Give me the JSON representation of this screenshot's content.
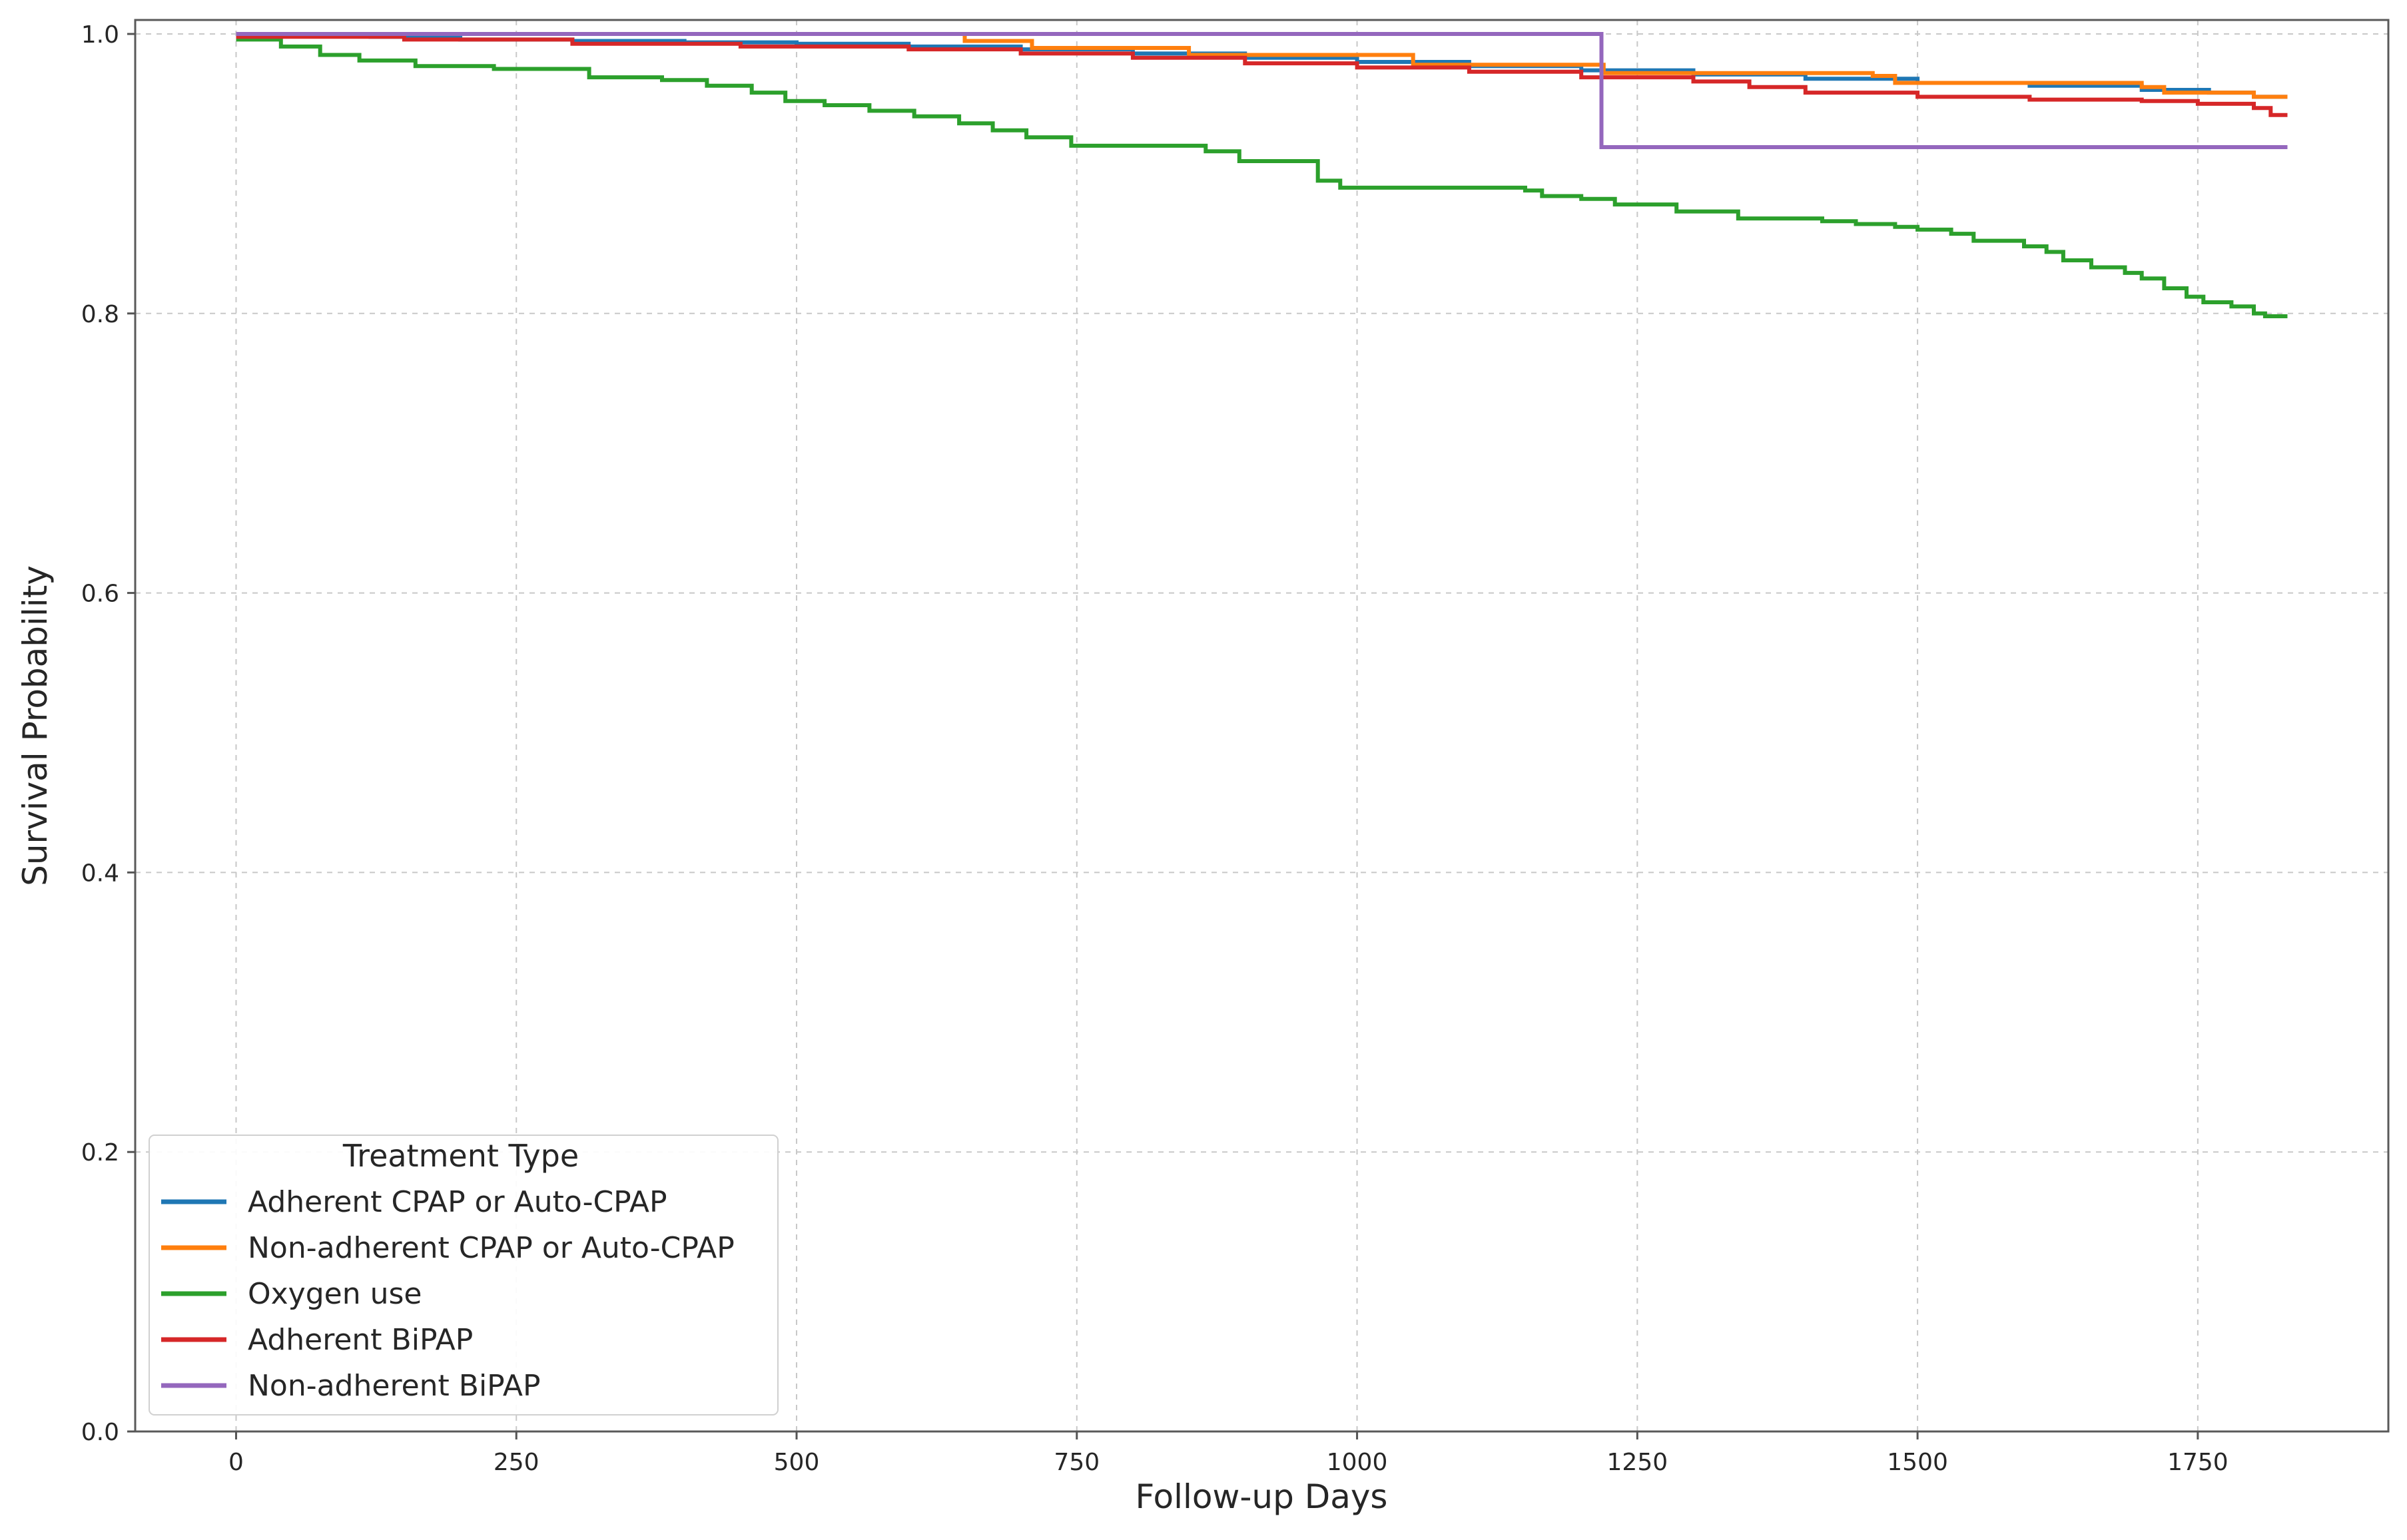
{
  "chart_data": {
    "type": "line",
    "title": "",
    "xlabel": "Follow-up Days",
    "ylabel": "Survival Probability",
    "xlim": [
      -90,
      1920
    ],
    "ylim": [
      0.0,
      1.01
    ],
    "xticks": [
      0,
      250,
      500,
      750,
      1000,
      1250,
      1500,
      1750
    ],
    "xtick_labels": [
      "0",
      "250",
      "500",
      "750",
      "1000",
      "1250",
      "1500",
      "1750"
    ],
    "yticks": [
      0.0,
      0.2,
      0.4,
      0.6,
      0.8,
      1.0
    ],
    "ytick_labels": [
      "0.0",
      "0.2",
      "0.4",
      "0.6",
      "0.8",
      "1.0"
    ],
    "grid": true,
    "legend": {
      "title": "Treatment Type",
      "placement": "lower-left"
    },
    "series": [
      {
        "name": "Adherent CPAP or Auto-CPAP",
        "color": "#1f77b4",
        "step": "post",
        "x": [
          0,
          50,
          120,
          200,
          300,
          400,
          500,
          600,
          700,
          800,
          900,
          1000,
          1100,
          1200,
          1300,
          1400,
          1500,
          1600,
          1700,
          1760,
          1800,
          1830
        ],
        "y": [
          1.0,
          0.999,
          0.998,
          0.996,
          0.995,
          0.994,
          0.993,
          0.991,
          0.989,
          0.986,
          0.983,
          0.98,
          0.977,
          0.974,
          0.971,
          0.968,
          0.965,
          0.963,
          0.96,
          0.958,
          0.955,
          0.955
        ]
      },
      {
        "name": "Non-adherent CPAP or Auto-CPAP",
        "color": "#ff7f0e",
        "step": "post",
        "x": [
          0,
          300,
          650,
          710,
          850,
          1050,
          1220,
          1460,
          1480,
          1700,
          1720,
          1800,
          1830
        ],
        "y": [
          1.0,
          1.0,
          0.995,
          0.99,
          0.985,
          0.978,
          0.972,
          0.97,
          0.965,
          0.962,
          0.958,
          0.955,
          0.955
        ]
      },
      {
        "name": "Oxygen use",
        "color": "#2ca02c",
        "step": "post",
        "x": [
          0,
          40,
          75,
          110,
          160,
          230,
          315,
          380,
          420,
          460,
          490,
          525,
          565,
          605,
          645,
          675,
          705,
          745,
          865,
          895,
          965,
          985,
          1150,
          1165,
          1200,
          1230,
          1285,
          1340,
          1415,
          1445,
          1480,
          1500,
          1530,
          1550,
          1595,
          1615,
          1630,
          1655,
          1685,
          1700,
          1720,
          1740,
          1755,
          1780,
          1800,
          1810,
          1830
        ],
        "y": [
          0.996,
          0.991,
          0.985,
          0.981,
          0.977,
          0.975,
          0.969,
          0.967,
          0.963,
          0.958,
          0.952,
          0.949,
          0.945,
          0.941,
          0.936,
          0.931,
          0.926,
          0.92,
          0.916,
          0.909,
          0.895,
          0.89,
          0.888,
          0.884,
          0.882,
          0.878,
          0.873,
          0.868,
          0.866,
          0.864,
          0.862,
          0.86,
          0.857,
          0.852,
          0.848,
          0.844,
          0.838,
          0.833,
          0.829,
          0.825,
          0.818,
          0.812,
          0.808,
          0.805,
          0.8,
          0.798,
          0.798
        ]
      },
      {
        "name": "Adherent BiPAP",
        "color": "#d62728",
        "step": "post",
        "x": [
          0,
          150,
          300,
          450,
          600,
          700,
          800,
          900,
          1000,
          1100,
          1200,
          1300,
          1350,
          1400,
          1500,
          1600,
          1700,
          1750,
          1800,
          1815,
          1830
        ],
        "y": [
          0.998,
          0.996,
          0.993,
          0.991,
          0.989,
          0.986,
          0.983,
          0.979,
          0.976,
          0.973,
          0.969,
          0.966,
          0.962,
          0.958,
          0.955,
          0.953,
          0.952,
          0.95,
          0.947,
          0.942,
          0.942
        ]
      },
      {
        "name": "Non-adherent BiPAP",
        "color": "#9467bd",
        "step": "post",
        "x": [
          0,
          1218,
          1830
        ],
        "y": [
          1.0,
          0.919,
          0.919
        ]
      }
    ]
  }
}
